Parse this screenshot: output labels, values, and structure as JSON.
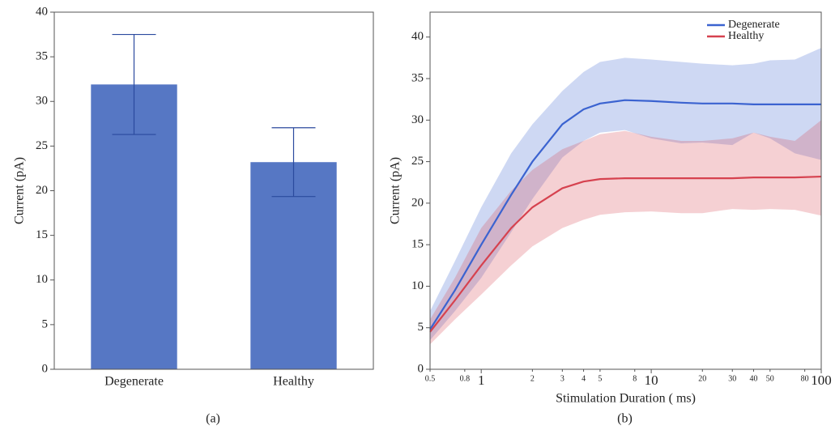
{
  "chart_data": [
    {
      "type": "bar",
      "caption": "(a)",
      "y_label": "Current (pA)",
      "categories": [
        "Degenerate",
        "Healthy"
      ],
      "values": [
        31.9,
        23.2
      ],
      "errors": [
        5.6,
        3.85
      ],
      "color": "#5677c4",
      "error_color": "#2b4a9e",
      "ylim": [
        0,
        40
      ],
      "yticks": [
        0,
        5,
        10,
        15,
        20,
        25,
        30,
        35,
        40
      ]
    },
    {
      "type": "line",
      "caption": "(b)",
      "x_label": "Stimulation Duration ( ms)",
      "y_label": "Current (pA)",
      "log_x": true,
      "legend": "upper right",
      "x": [
        0.5,
        0.7,
        1,
        1.5,
        2,
        3,
        4,
        5,
        7,
        10,
        15,
        20,
        30,
        40,
        50,
        70,
        100
      ],
      "series": [
        {
          "name": "Degenerate",
          "color": "#3b63d0",
          "values": [
            4.8,
            9.5,
            15,
            21,
            25,
            29.5,
            31.3,
            32,
            32.4,
            32.3,
            32.1,
            32,
            32,
            31.9,
            31.9,
            31.9,
            31.9
          ],
          "upper": [
            7,
            13,
            19.5,
            26,
            29.5,
            33.5,
            35.8,
            37,
            37.5,
            37.3,
            37,
            36.8,
            36.6,
            36.8,
            37.2,
            37.3,
            38.7
          ],
          "lower": [
            3.5,
            7,
            11,
            16.5,
            20.5,
            25.5,
            27.5,
            28.5,
            28.8,
            27.8,
            27.2,
            27.3,
            27,
            28.5,
            27.8,
            26,
            25.2
          ]
        },
        {
          "name": "Healthy",
          "color": "#d6424f",
          "values": [
            4.5,
            8.3,
            12.5,
            17,
            19.5,
            21.8,
            22.6,
            22.9,
            23,
            23,
            23,
            23,
            23,
            23.1,
            23.1,
            23.1,
            23.2
          ],
          "upper": [
            6,
            11,
            17,
            21.5,
            24,
            26.5,
            27.5,
            28.3,
            28.7,
            28,
            27.5,
            27.5,
            27.8,
            28.5,
            28,
            27.5,
            30
          ],
          "lower": [
            3,
            6,
            9,
            12.5,
            14.8,
            17,
            18,
            18.6,
            18.9,
            19,
            18.8,
            18.8,
            19.3,
            19.2,
            19.3,
            19.2,
            18.5
          ]
        }
      ],
      "xlim": [
        0.5,
        100
      ],
      "xticks": [
        0.5,
        0.8,
        1,
        2,
        3,
        4,
        5,
        8,
        10,
        20,
        30,
        40,
        50,
        80,
        100
      ],
      "ylim": [
        0,
        43
      ],
      "yticks": [
        0,
        5,
        10,
        15,
        20,
        25,
        30,
        35,
        40
      ]
    }
  ]
}
